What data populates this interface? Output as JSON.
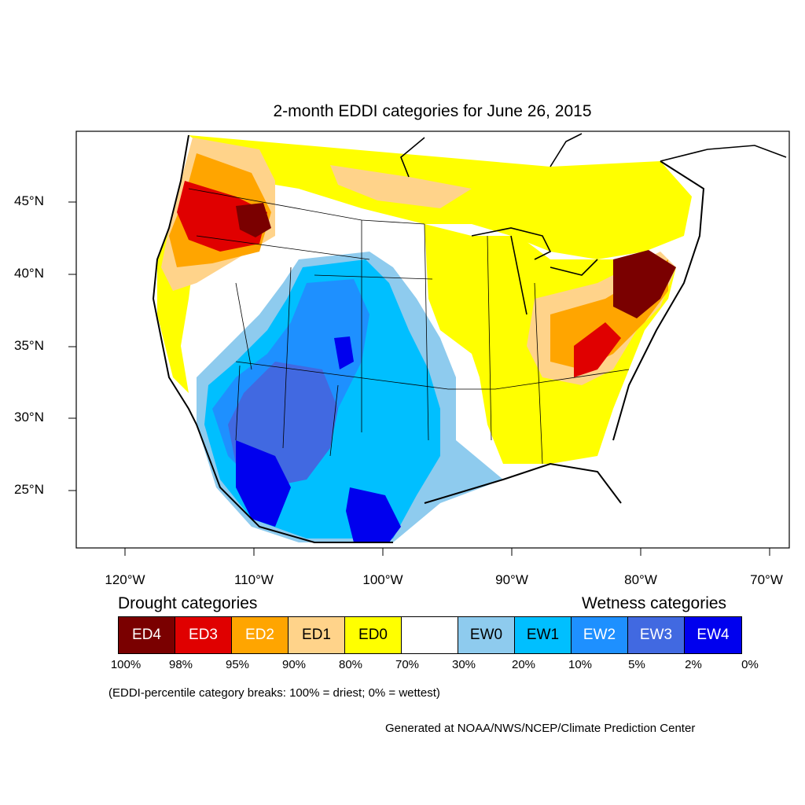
{
  "title": "2-month EDDI categories for June 26, 2015",
  "y_ticks": [
    "45°N",
    "40°N",
    "35°N",
    "30°N",
    "25°N"
  ],
  "x_ticks": [
    "120°W",
    "110°W",
    "100°W",
    "90°W",
    "80°W",
    "70°W"
  ],
  "legend": {
    "drought_heading": "Drought categories",
    "wetness_heading": "Wetness categories",
    "categories": [
      {
        "label": "ED4",
        "color": "#7a0000",
        "text_color": "#ffffff"
      },
      {
        "label": "ED3",
        "color": "#e00000",
        "text_color": "#ffffff"
      },
      {
        "label": "ED2",
        "color": "#ffa500",
        "text_color": "#ffffff"
      },
      {
        "label": "ED1",
        "color": "#ffd38a",
        "text_color": "#000000"
      },
      {
        "label": "ED0",
        "color": "#ffff00",
        "text_color": "#000000"
      },
      {
        "label": "",
        "color": "#ffffff",
        "text_color": "#000000"
      },
      {
        "label": "EW0",
        "color": "#8ecbee",
        "text_color": "#000000"
      },
      {
        "label": "EW1",
        "color": "#00bfff",
        "text_color": "#000000"
      },
      {
        "label": "EW2",
        "color": "#1e90ff",
        "text_color": "#ffffff"
      },
      {
        "label": "EW3",
        "color": "#4169e1",
        "text_color": "#ffffff"
      },
      {
        "label": "EW4",
        "color": "#0000ee",
        "text_color": "#ffffff"
      }
    ],
    "breaks": [
      "100%",
      "98%",
      "95%",
      "90%",
      "80%",
      "70%",
      "30%",
      "20%",
      "10%",
      "5%",
      "2%",
      "0%"
    ]
  },
  "note": "(EDDI-percentile category breaks: 100% = driest; 0% = wettest)",
  "credit": "Generated at NOAA/NWS/NCEP/Climate Prediction Center"
}
